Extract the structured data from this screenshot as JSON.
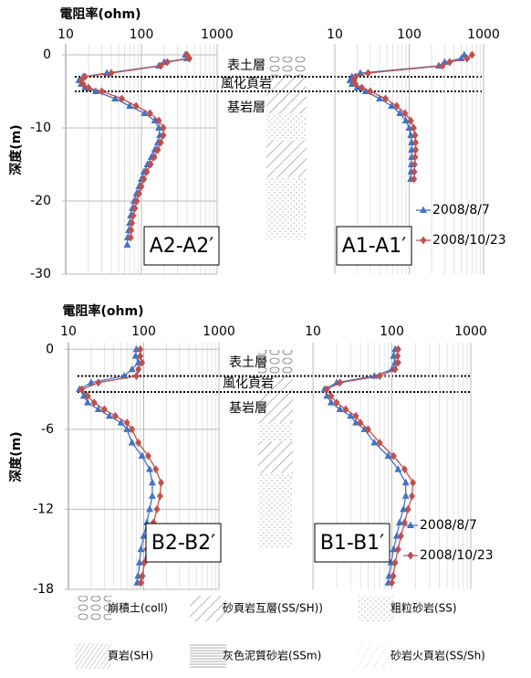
{
  "chart_data": [
    {
      "type": "line",
      "log_x": true,
      "x_label": "電阻率(ohm)",
      "y_label": "深度(m)",
      "xlim": [
        10,
        1000
      ],
      "xticks": [
        10,
        100,
        1000
      ],
      "ylim": [
        -30,
        1.5
      ],
      "yticks": [
        0,
        -10,
        -20,
        -30
      ],
      "label": "A2-A2′",
      "annotations": [
        "表土層",
        "風化頁岩",
        "基岩層"
      ],
      "layer_boundaries": [
        -3,
        -5
      ],
      "series": [
        {
          "color": "#4472c4",
          "marker": "triangle",
          "depths": [
            0,
            -0.5,
            -1,
            -1.5,
            -2.5,
            -3,
            -3.5,
            -4,
            -4.5,
            -5,
            -6,
            -7,
            -8,
            -9,
            -10,
            -11,
            -12,
            -13,
            -14,
            -15,
            -16,
            -17,
            -18,
            -19,
            -20,
            -21,
            -22,
            -23,
            -24,
            -25,
            -26
          ],
          "values": [
            380,
            400,
            200,
            170,
            35,
            17,
            15,
            16,
            18,
            25,
            45,
            70,
            110,
            150,
            170,
            175,
            165,
            150,
            135,
            120,
            108,
            100,
            93,
            86,
            80,
            76,
            72,
            70,
            68,
            66,
            65
          ]
        },
        {
          "color": "#c0504d",
          "marker": "diamond",
          "depths": [
            0,
            -0.5,
            -1,
            -1.5,
            -2.5,
            -3,
            -3.5,
            -4,
            -4.5,
            -5,
            -6,
            -7,
            -8,
            -9,
            -10,
            -11,
            -12,
            -13,
            -14,
            -15,
            -16,
            -17,
            -18,
            -19,
            -20,
            -21,
            -22,
            -23,
            -24,
            -25
          ],
          "values": [
            400,
            430,
            220,
            180,
            40,
            18,
            16,
            17,
            20,
            30,
            55,
            85,
            130,
            170,
            195,
            195,
            180,
            165,
            148,
            132,
            118,
            108,
            100,
            93,
            87,
            82,
            78,
            75,
            73,
            72
          ]
        }
      ]
    },
    {
      "type": "line",
      "log_x": true,
      "xlim": [
        10,
        1000
      ],
      "xticks": [
        10,
        100,
        1000
      ],
      "ylim": [
        -30,
        1.5
      ],
      "label": "A1-A1′",
      "legend": "lower right",
      "series": [
        {
          "name": "2008/8/7",
          "color": "#4472c4",
          "marker": "triangle",
          "depths": [
            0,
            -0.5,
            -1,
            -1.5,
            -2.5,
            -3,
            -3.5,
            -4,
            -4.5,
            -5,
            -6,
            -7,
            -8,
            -9,
            -10,
            -11,
            -12,
            -13,
            -14,
            -15,
            -16,
            -17
          ],
          "values": [
            550,
            500,
            300,
            250,
            22,
            17,
            16,
            17,
            20,
            26,
            40,
            58,
            75,
            90,
            100,
            105,
            108,
            108,
            108,
            107,
            106,
            105
          ]
        },
        {
          "name": "2008/10/23",
          "color": "#c0504d",
          "marker": "diamond",
          "depths": [
            0,
            -0.5,
            -1,
            -1.5,
            -2.5,
            -3,
            -3.5,
            -4,
            -4.5,
            -5,
            -6,
            -7,
            -8,
            -9,
            -10,
            -11,
            -12,
            -13,
            -14,
            -15,
            -16,
            -17
          ],
          "values": [
            700,
            600,
            350,
            280,
            28,
            19,
            18,
            19,
            23,
            30,
            48,
            68,
            88,
            105,
            115,
            120,
            122,
            122,
            120,
            118,
            117,
            116
          ]
        }
      ]
    },
    {
      "type": "line",
      "log_x": true,
      "x_label": "電阻率(ohm)",
      "y_label": "深度(m)",
      "xlim": [
        10,
        1000
      ],
      "xticks": [
        10,
        100,
        1000
      ],
      "ylim": [
        -18,
        0.5
      ],
      "yticks": [
        0,
        -6,
        -12,
        -18
      ],
      "label": "B2-B2′",
      "annotations": [
        "表土層",
        "風化頁岩",
        "基岩層"
      ],
      "layer_boundaries": [
        -2,
        -3.2
      ],
      "series": [
        {
          "color": "#4472c4",
          "marker": "triangle",
          "depths": [
            0,
            -0.5,
            -1,
            -1.5,
            -2,
            -2.5,
            -3,
            -3.5,
            -4,
            -4.5,
            -5,
            -5.5,
            -6,
            -7,
            -8,
            -9,
            -10,
            -11,
            -12,
            -13,
            -14,
            -15,
            -16,
            -17,
            -17.5
          ],
          "values": [
            80,
            78,
            85,
            70,
            55,
            20,
            14,
            16,
            18,
            25,
            35,
            50,
            60,
            70,
            95,
            120,
            130,
            130,
            120,
            110,
            100,
            92,
            88,
            84,
            82
          ]
        },
        {
          "color": "#c0504d",
          "marker": "diamond",
          "depths": [
            0,
            -0.5,
            -1,
            -1.5,
            -2,
            -2.5,
            -3,
            -3.5,
            -4,
            -4.5,
            -5,
            -5.5,
            -6,
            -7,
            -8,
            -9,
            -10,
            -11,
            -12,
            -13,
            -14,
            -15,
            -16,
            -17,
            -17.5
          ],
          "values": [
            90,
            90,
            95,
            85,
            80,
            25,
            15,
            18,
            22,
            30,
            42,
            60,
            70,
            85,
            115,
            145,
            170,
            165,
            150,
            135,
            120,
            110,
            102,
            96,
            92
          ]
        }
      ]
    },
    {
      "type": "line",
      "log_x": true,
      "xlim": [
        10,
        1000
      ],
      "xticks": [
        10,
        100,
        1000
      ],
      "ylim": [
        -18,
        0.5
      ],
      "label": "B1-B1′",
      "legend": "lower right",
      "series": [
        {
          "name": "2008/8/7",
          "color": "#4472c4",
          "marker": "triangle",
          "depths": [
            0,
            -0.5,
            -1,
            -1.5,
            -2,
            -2.5,
            -3,
            -3.5,
            -4,
            -4.5,
            -5,
            -5.5,
            -6,
            -7,
            -8,
            -9,
            -10,
            -11,
            -12,
            -13,
            -14,
            -15,
            -16,
            -17,
            -17.5
          ],
          "values": [
            110,
            105,
            110,
            100,
            60,
            20,
            14,
            15,
            17,
            22,
            30,
            35,
            45,
            60,
            90,
            120,
            150,
            150,
            140,
            125,
            115,
            105,
            98,
            92,
            90
          ]
        },
        {
          "name": "2008/10/23",
          "color": "#c0504d",
          "marker": "diamond",
          "depths": [
            0,
            -0.5,
            -1,
            -1.5,
            -2,
            -2.5,
            -3,
            -3.5,
            -4,
            -4.5,
            -5,
            -5.5,
            -6,
            -7,
            -8,
            -9,
            -10,
            -11,
            -12,
            -13,
            -14,
            -15,
            -16,
            -17,
            -17.5
          ],
          "values": [
            120,
            118,
            120,
            110,
            70,
            22,
            15,
            17,
            20,
            26,
            35,
            40,
            50,
            70,
            105,
            145,
            185,
            180,
            160,
            145,
            130,
            120,
            110,
            104,
            100
          ]
        }
      ]
    }
  ],
  "lithology_legend": [
    "崩積土(coll)",
    "砂頁岩互層(SS/SH))",
    "粗粒砂岩(SS)",
    "頁岩(SH)",
    "灰色泥質砂岩(SSm)",
    "砂岩火頁岩(SS/Sh)"
  ]
}
